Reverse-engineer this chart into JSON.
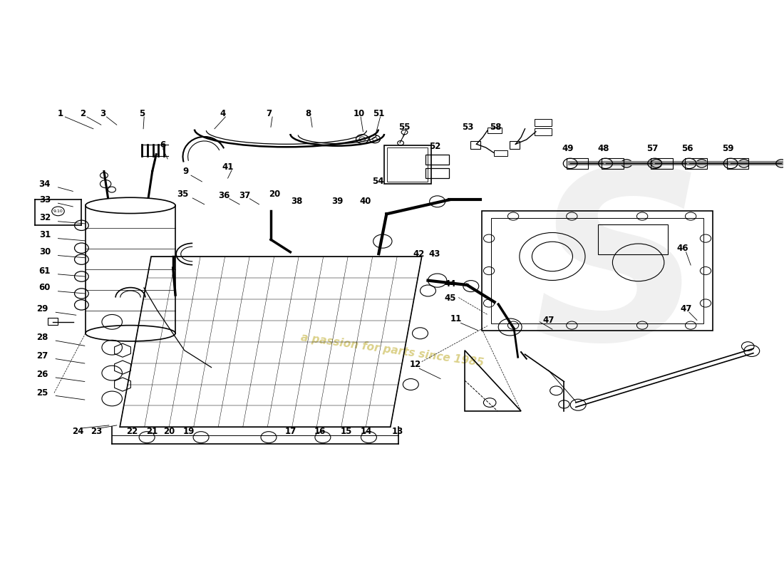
{
  "bg": "#ffffff",
  "lc": "#000000",
  "watermark1": "a passion for parts since 1985",
  "wc": "#c8b84a",
  "fig_w": 11.0,
  "fig_h": 8.0,
  "dpi": 100
}
